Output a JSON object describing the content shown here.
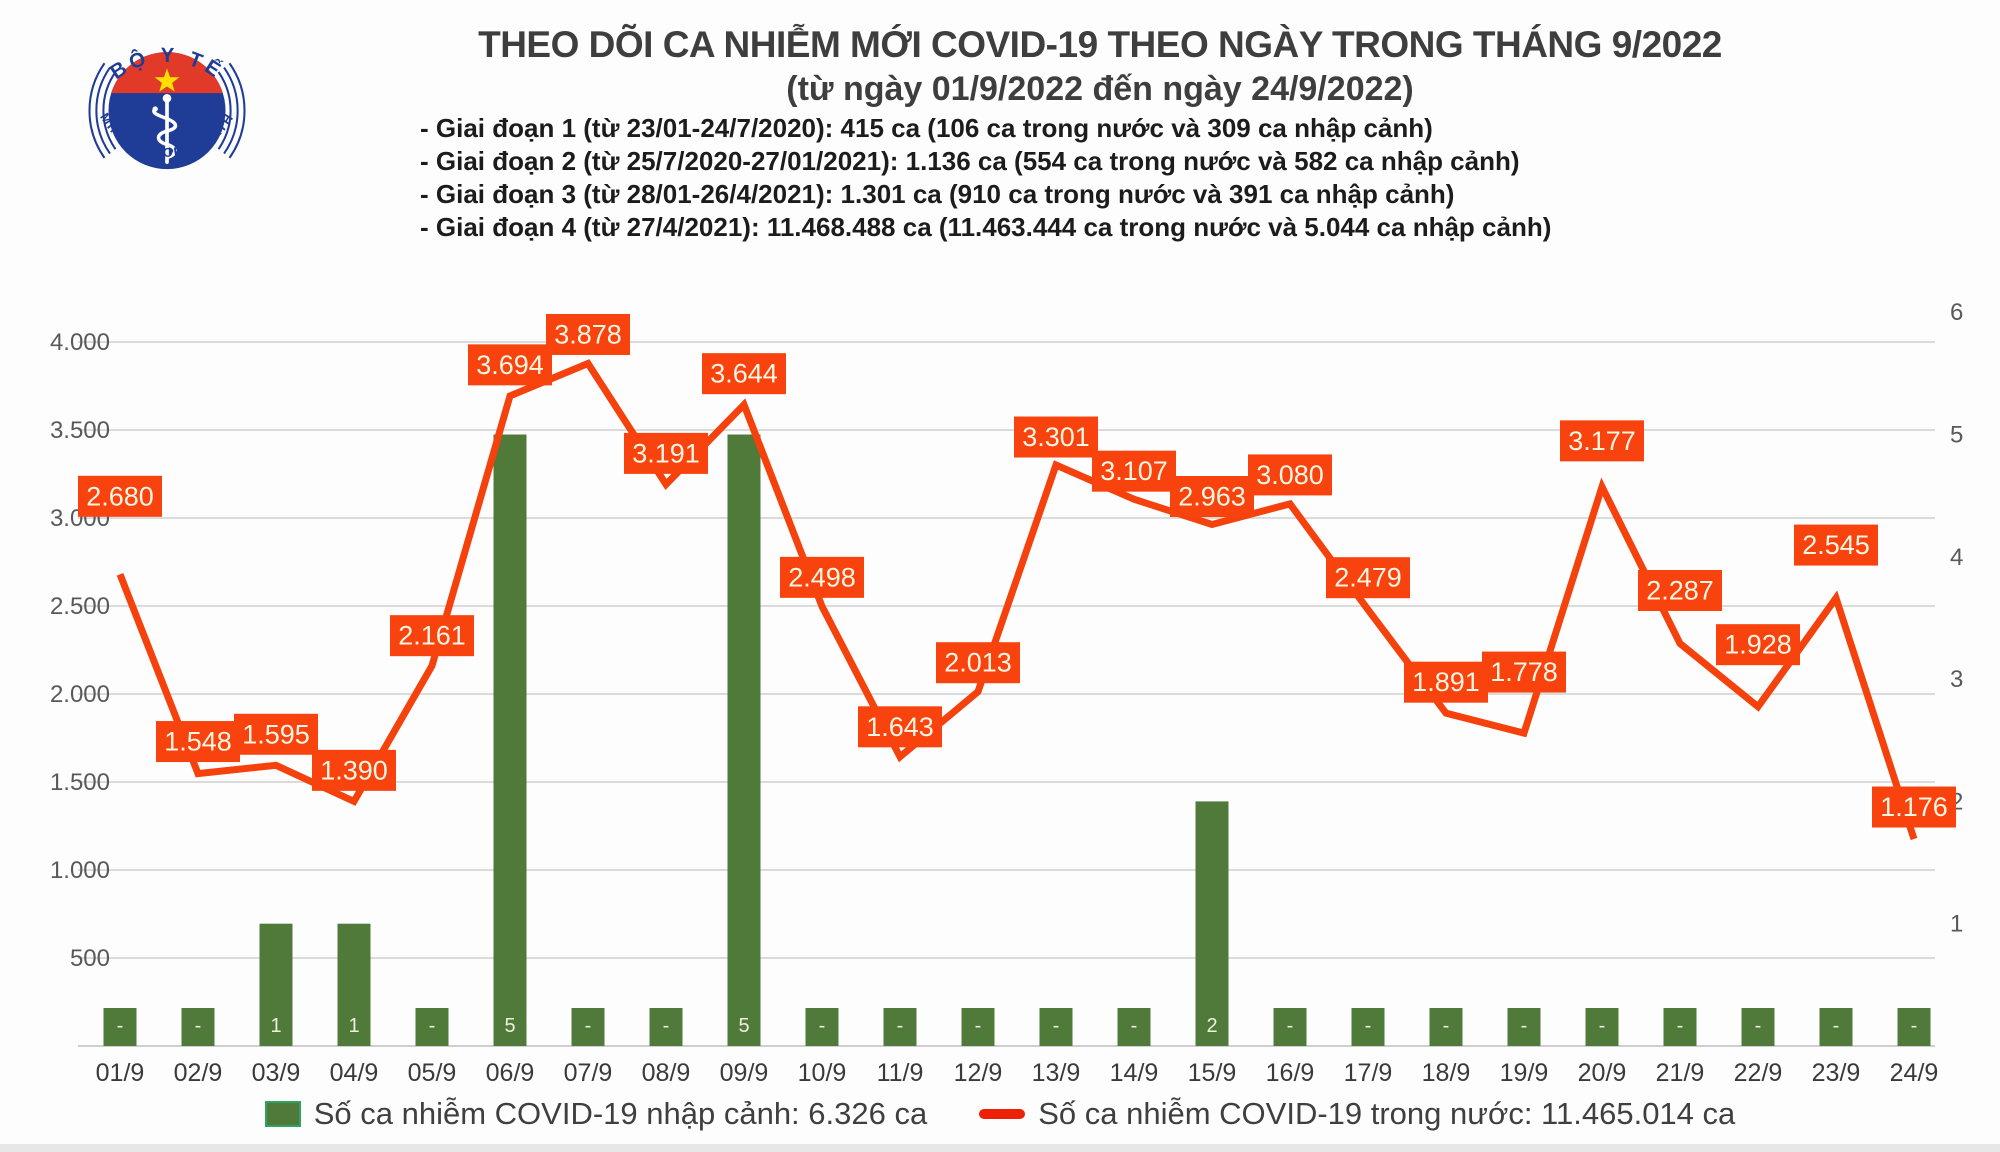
{
  "logo": {
    "top_text": "BỘ Y TẾ",
    "bottom_text": "MINISTRY OF HEALTH"
  },
  "header": {
    "title": "THEO DÕI CA NHIỄM MỚI COVID-19 THEO NGÀY TRONG THÁNG 9/2022",
    "subtitle": "(từ ngày 01/9/2022 đến ngày 24/9/2022)",
    "phases": [
      "- Giai đoạn 1 (từ 23/01-24/7/2020): 415 ca (106 ca trong nước và 309 ca nhập cảnh)",
      "- Giai đoạn 2 (từ 25/7/2020-27/01/2021): 1.136 ca (554 ca trong nước và 582 ca nhập cảnh)",
      "- Giai đoạn 3 (từ 28/01-26/4/2021): 1.301 ca (910 ca trong nước và 391 ca nhập cảnh)",
      "- Giai đoạn 4 (từ 27/4/2021): 11.468.488 ca (11.463.444 ca trong nước và 5.044 ca nhập cảnh)"
    ]
  },
  "chart_data": {
    "type": "line+bar",
    "categories": [
      "01/9",
      "02/9",
      "03/9",
      "04/9",
      "05/9",
      "06/9",
      "07/9",
      "08/9",
      "09/9",
      "10/9",
      "11/9",
      "12/9",
      "13/9",
      "14/9",
      "15/9",
      "16/9",
      "17/9",
      "18/9",
      "19/9",
      "20/9",
      "21/9",
      "22/9",
      "23/9",
      "24/9"
    ],
    "series": [
      {
        "name": "Số ca nhiễm COVID-19 nhập cảnh",
        "type": "bar",
        "axis": "right",
        "values": [
          null,
          null,
          1,
          1,
          null,
          5,
          null,
          null,
          5,
          null,
          null,
          null,
          null,
          null,
          2,
          null,
          null,
          null,
          null,
          null,
          null,
          null,
          null,
          null
        ]
      },
      {
        "name": "Số ca nhiễm COVID-19 trong nước",
        "type": "line",
        "axis": "left",
        "values": [
          2680,
          1548,
          1595,
          1390,
          2161,
          3694,
          3878,
          3191,
          3644,
          2498,
          1643,
          2013,
          3301,
          3107,
          2963,
          3080,
          2479,
          1891,
          1778,
          3177,
          2287,
          1928,
          2545,
          1176
        ]
      }
    ],
    "point_labels": [
      "2.680",
      "1.548",
      "1.595",
      "1.390",
      "2.161",
      "3.694",
      "3.878",
      "3.191",
      "3.644",
      "2.498",
      "1.643",
      "2.013",
      "3.301",
      "3.107",
      "2.963",
      "3.080",
      "2.479",
      "1.891",
      "1.778",
      "3.177",
      "2.287",
      "1.928",
      "2.545",
      "1.176"
    ],
    "bar_labels": [
      "-",
      "-",
      "1",
      "1",
      "-",
      "5",
      "-",
      "-",
      "5",
      "-",
      "-",
      "-",
      "-",
      "-",
      "2",
      "-",
      "-",
      "-",
      "-",
      "-",
      "-",
      "-",
      "-",
      "-"
    ],
    "left_axis": {
      "ticks": [
        "500",
        "1.000",
        "1.500",
        "2.000",
        "2.500",
        "3.000",
        "3.500",
        "4.000"
      ],
      "min": 0,
      "max": 4200
    },
    "right_axis": {
      "ticks": [
        "1",
        "2",
        "3",
        "4",
        "5",
        "6"
      ],
      "min": 0,
      "max": 6
    },
    "grid": "horizontal",
    "legend_position": "bottom",
    "colors": {
      "line": "#F5420D",
      "label_box": "#F9430E",
      "label_text": "#FDF6E3",
      "bar": "#4F7A3A",
      "grid": "#DBDBDB",
      "axis_text": "#595959"
    }
  },
  "legend": {
    "import_label": "Số ca nhiễm COVID-19 nhập cảnh: 6.326 ca",
    "domestic_label": "Số ca nhiễm COVID-19 trong nước: 11.465.014 ca"
  }
}
